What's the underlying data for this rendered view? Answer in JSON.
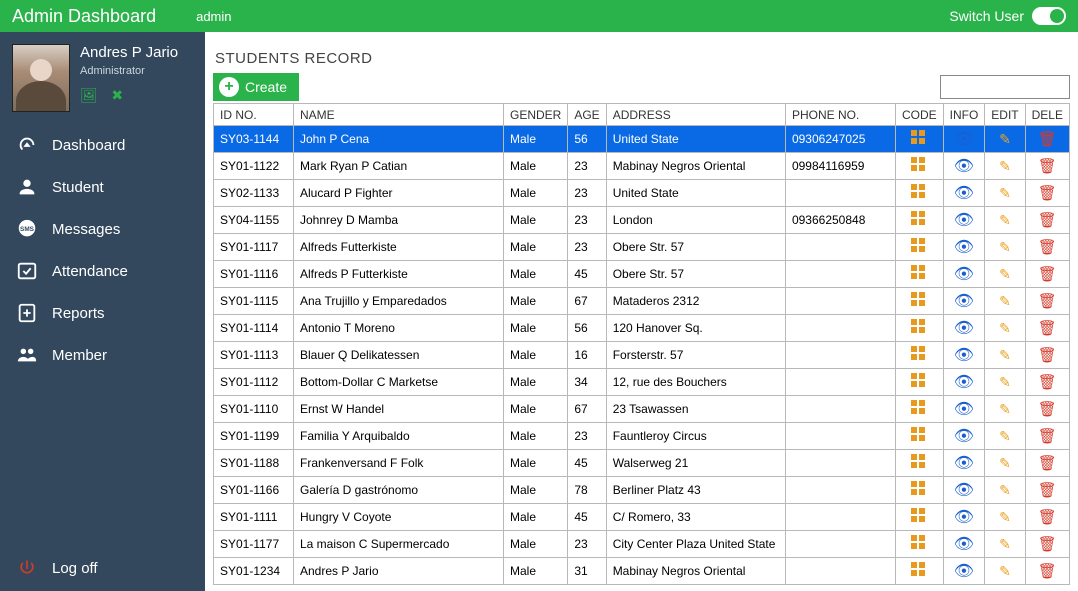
{
  "colors": {
    "brand": "#2ab34a",
    "sidebar": "#33485d",
    "row_selected": "#0a6ae6",
    "icon_code": "#e89a1f",
    "icon_info": "#1a5fd0",
    "icon_edit": "#e8a21f",
    "icon_delete": "#d43a2a"
  },
  "topbar": {
    "title": "Admin Dashboard",
    "user": "admin",
    "switch_label": "Switch User"
  },
  "profile": {
    "name": "Andres P Jario",
    "role": "Administrator"
  },
  "sidebar": {
    "items": [
      {
        "label": "Dashboard",
        "icon": "gauge"
      },
      {
        "label": "Student",
        "icon": "person"
      },
      {
        "label": "Messages",
        "icon": "sms"
      },
      {
        "label": "Attendance",
        "icon": "check-cal"
      },
      {
        "label": "Reports",
        "icon": "report"
      },
      {
        "label": "Member",
        "icon": "members"
      }
    ],
    "logoff_label": "Log off"
  },
  "main": {
    "heading": "STUDENTS RECORD",
    "create_label": "Create",
    "search_value": "",
    "columns": [
      "ID NO.",
      "NAME",
      "GENDER",
      "AGE",
      "ADDRESS",
      "PHONE NO.",
      "CODE",
      "INFO",
      "EDIT",
      "DELE"
    ],
    "selected_index": 0,
    "rows": [
      {
        "id": "SY03-1144",
        "name": "John P Cena",
        "gender": "Male",
        "age": "56",
        "address": "United State",
        "phone": "09306247025"
      },
      {
        "id": "SY01-1122",
        "name": "Mark Ryan P Catian",
        "gender": "Male",
        "age": "23",
        "address": "Mabinay Negros Oriental",
        "phone": "09984116959"
      },
      {
        "id": "SY02-1133",
        "name": "Alucard P Fighter",
        "gender": "Male",
        "age": "23",
        "address": "United State",
        "phone": ""
      },
      {
        "id": "SY04-1155",
        "name": "Johnrey D Mamba",
        "gender": "Male",
        "age": "23",
        "address": "London",
        "phone": "09366250848"
      },
      {
        "id": "SY01-1117",
        "name": "Alfreds  Futterkiste",
        "gender": "Male",
        "age": "23",
        "address": "Obere Str. 57",
        "phone": ""
      },
      {
        "id": "SY01-1116",
        "name": "Alfreds P Futterkiste",
        "gender": "Male",
        "age": "45",
        "address": "Obere Str. 57",
        "phone": ""
      },
      {
        "id": "SY01-1115",
        "name": "Ana Trujillo y Emparedados",
        "gender": "Male",
        "age": "67",
        "address": "Mataderos 2312",
        "phone": ""
      },
      {
        "id": "SY01-1114",
        "name": "Antonio T Moreno",
        "gender": "Male",
        "age": "56",
        "address": "120 Hanover Sq.",
        "phone": ""
      },
      {
        "id": "SY01-1113",
        "name": "Blauer Q Delikatessen",
        "gender": "Male",
        "age": "16",
        "address": "Forsterstr. 57",
        "phone": ""
      },
      {
        "id": "SY01-1112",
        "name": "Bottom-Dollar C Marketse",
        "gender": "Male",
        "age": "34",
        "address": "12, rue des Bouchers",
        "phone": ""
      },
      {
        "id": "SY01-1110",
        "name": "Ernst W Handel",
        "gender": "Male",
        "age": "67",
        "address": "23 Tsawassen",
        "phone": ""
      },
      {
        "id": "SY01-1199",
        "name": "Familia Y Arquibaldo",
        "gender": "Male",
        "age": "23",
        "address": "Fauntleroy Circus",
        "phone": ""
      },
      {
        "id": "SY01-1188",
        "name": "Frankenversand F Folk",
        "gender": "Male",
        "age": "45",
        "address": "Walserweg 21",
        "phone": ""
      },
      {
        "id": "SY01-1166",
        "name": "Galería D gastrónomo",
        "gender": "Male",
        "age": "78",
        "address": "Berliner Platz 43",
        "phone": ""
      },
      {
        "id": "SY01-1111",
        "name": "Hungry V Coyote",
        "gender": "Male",
        "age": "45",
        "address": "C/ Romero, 33",
        "phone": ""
      },
      {
        "id": "SY01-1177",
        "name": "La maison C Supermercado",
        "gender": "Male",
        "age": "23",
        "address": "City Center Plaza United State",
        "phone": ""
      },
      {
        "id": "SY01-1234",
        "name": "Andres P Jario",
        "gender": "Male",
        "age": "31",
        "address": "Mabinay Negros Oriental",
        "phone": ""
      }
    ]
  }
}
